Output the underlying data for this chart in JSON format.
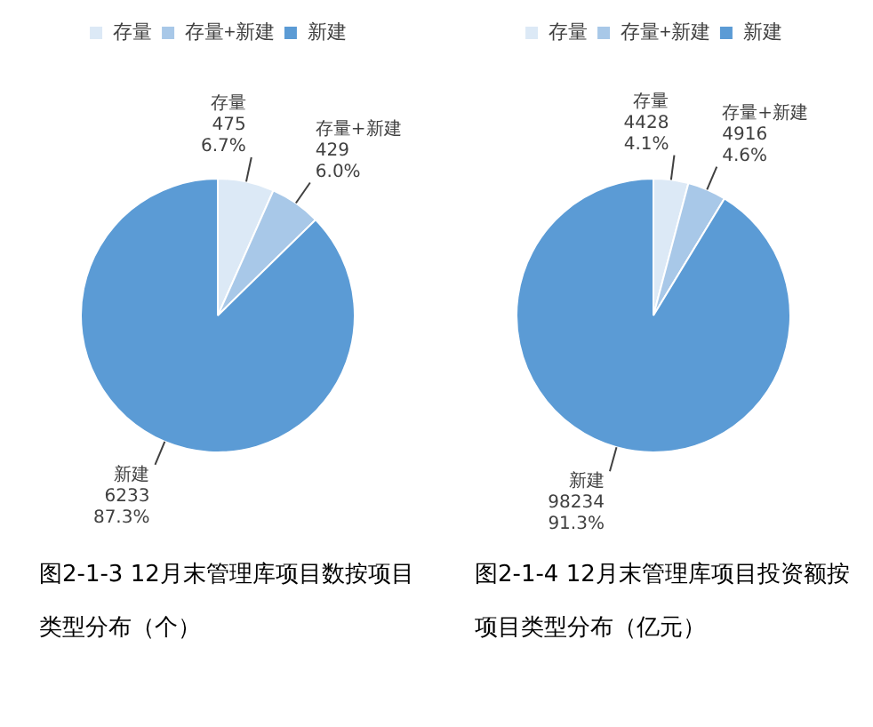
{
  "chart_data": [
    {
      "type": "pie",
      "title": "图2-1-3 12月末管理库项目数按项目类型分布（个）",
      "categories": [
        "存量",
        "存量+新建",
        "新建"
      ],
      "values": [
        475,
        429,
        6233
      ],
      "value_labels": [
        "475\n6.7%",
        "429\n6.0%",
        "6233\n87.3%"
      ],
      "colors": [
        "#dce9f6",
        "#a8c8e8",
        "#5b9bd5"
      ],
      "legend": "top"
    },
    {
      "type": "pie",
      "title": "图2-1-4 12月末管理库项目投资额按项目类型分布（亿元）",
      "categories": [
        "存量",
        "存量+新建",
        "新建"
      ],
      "values": [
        4428,
        4916,
        98234
      ],
      "value_labels": [
        "4428\n4.1%",
        "4916\n4.6%",
        "98234\n91.3%"
      ],
      "colors": [
        "#dce9f6",
        "#a8c8e8",
        "#5b9bd5"
      ],
      "legend": "top"
    }
  ]
}
